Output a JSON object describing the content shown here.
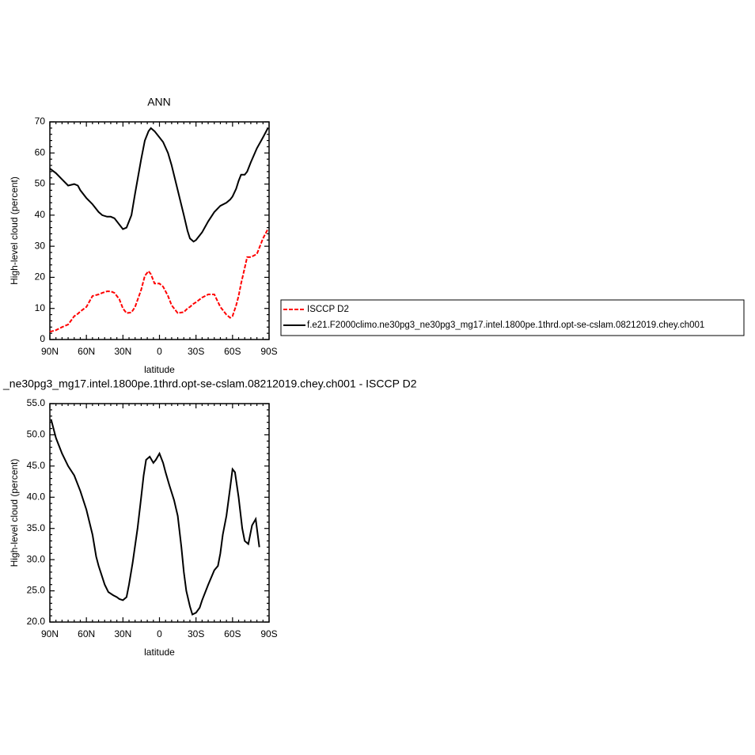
{
  "chart_data": [
    {
      "type": "line",
      "title": "ANN",
      "xlabel": "latitude",
      "ylabel": "High-level cloud (percent)",
      "x": [
        90,
        85,
        80,
        75,
        70,
        67,
        65,
        60,
        55,
        50,
        47,
        43,
        40,
        37,
        33,
        30,
        27,
        23,
        20,
        15,
        12,
        9,
        7,
        4,
        0,
        -3,
        -7,
        -10,
        -15,
        -20,
        -23,
        -25,
        -28,
        -30,
        -35,
        -40,
        -45,
        -50,
        -55,
        -58,
        -60,
        -63,
        -65,
        -67,
        -70,
        -72,
        -75,
        -80,
        -85,
        -89
      ],
      "series": [
        {
          "name": "ISCCP D2",
          "color": "#ff0000",
          "dashed": true,
          "values": [
            2.5,
            3,
            4,
            4.8,
            7.5,
            8.3,
            9,
            10.5,
            14,
            14.5,
            15,
            15.5,
            15.5,
            15,
            13,
            10,
            8.5,
            8.7,
            10.5,
            16,
            20.5,
            22,
            21,
            18,
            18,
            17,
            14,
            11,
            8.5,
            8.8,
            10,
            10.5,
            11.5,
            12,
            13.5,
            14.5,
            14.5,
            10.5,
            8,
            7,
            7.5,
            11,
            14,
            18,
            23,
            26.5,
            26.5,
            27.5,
            32.5,
            35.5
          ]
        },
        {
          "name": "f.e21.F2000climo.ne30pg3_ne30pg3_mg17.intel.1800pe.1thrd.opt-se-cslam.08212019.chey.ch001",
          "color": "#000000",
          "dashed": false,
          "values": [
            55,
            53.5,
            51.5,
            49.5,
            50,
            49.5,
            48,
            45.5,
            43.5,
            41,
            40,
            39.5,
            39.5,
            39,
            37,
            35.5,
            36,
            40,
            47,
            58,
            64,
            67,
            68,
            67,
            65,
            63.5,
            60,
            56,
            48,
            40,
            35,
            32.5,
            31.5,
            32,
            34.5,
            38,
            41,
            43,
            44,
            45,
            46,
            48.5,
            51,
            53,
            53,
            54,
            57,
            61.5,
            65,
            68
          ]
        }
      ],
      "xlim": [
        90,
        -90
      ],
      "xticks": [
        {
          "value": 90,
          "label": "90N"
        },
        {
          "value": 60,
          "label": "60N"
        },
        {
          "value": 30,
          "label": "30N"
        },
        0,
        {
          "value": -30,
          "label": "30S"
        },
        {
          "value": -60,
          "label": "60S"
        },
        {
          "value": -90,
          "label": "90S"
        }
      ],
      "ylim": [
        0,
        70
      ],
      "yticks": [
        0,
        10,
        20,
        30,
        40,
        50,
        60,
        70
      ],
      "legend": "right"
    },
    {
      "type": "line",
      "title": "_ne30pg3_mg17.intel.1800pe.1thrd.opt-se-cslam.08212019.chey.ch001 - ISCCP D2",
      "xlabel": "latitude",
      "ylabel": "High-level cloud (percent)",
      "x": [
        89,
        85,
        80,
        75,
        70,
        65,
        60,
        55,
        52,
        50,
        45,
        42,
        38,
        35,
        33,
        30,
        27,
        25,
        22,
        18,
        15,
        13,
        11,
        8,
        5,
        3,
        0,
        -3,
        -5,
        -8,
        -12,
        -15,
        -18,
        -20,
        -22,
        -25,
        -27,
        -30,
        -33,
        -35,
        -40,
        -45,
        -48,
        -50,
        -52,
        -55,
        -58,
        -60,
        -62,
        -65,
        -68,
        -70,
        -73,
        -76,
        -79,
        -82
      ],
      "values": [
        52.5,
        49.5,
        47,
        45,
        43.5,
        41,
        38,
        34,
        30.5,
        29,
        26,
        24.8,
        24.3,
        24,
        23.7,
        23.5,
        24,
        26,
        29.5,
        35,
        40,
        43.5,
        46,
        46.5,
        45.5,
        46,
        47,
        45.5,
        44,
        42,
        39.5,
        37,
        32,
        28,
        25,
        22.5,
        21.2,
        21.5,
        22.3,
        23.5,
        26,
        28.3,
        29,
        31,
        34,
        37,
        41.5,
        44.5,
        44,
        40,
        35,
        33,
        32.5,
        35.5,
        36.5,
        32
      ],
      "color": "#000000",
      "xlim": [
        90,
        -90
      ],
      "xticks": [
        {
          "value": 90,
          "label": "90N"
        },
        {
          "value": 60,
          "label": "60N"
        },
        {
          "value": 30,
          "label": "30N"
        },
        0,
        {
          "value": -30,
          "label": "30S"
        },
        {
          "value": -60,
          "label": "60S"
        },
        {
          "value": -90,
          "label": "90S"
        }
      ],
      "ylim": [
        20,
        55
      ],
      "yticks": [
        {
          "value": 20,
          "label": "20.0"
        },
        {
          "value": 25,
          "label": "25.0"
        },
        {
          "value": 30,
          "label": "30.0"
        },
        {
          "value": 35,
          "label": "35.0"
        },
        {
          "value": 40,
          "label": "40.0"
        },
        {
          "value": 45,
          "label": "45.0"
        },
        {
          "value": 50,
          "label": "50.0"
        },
        {
          "value": 55,
          "label": "55.0"
        }
      ]
    }
  ]
}
